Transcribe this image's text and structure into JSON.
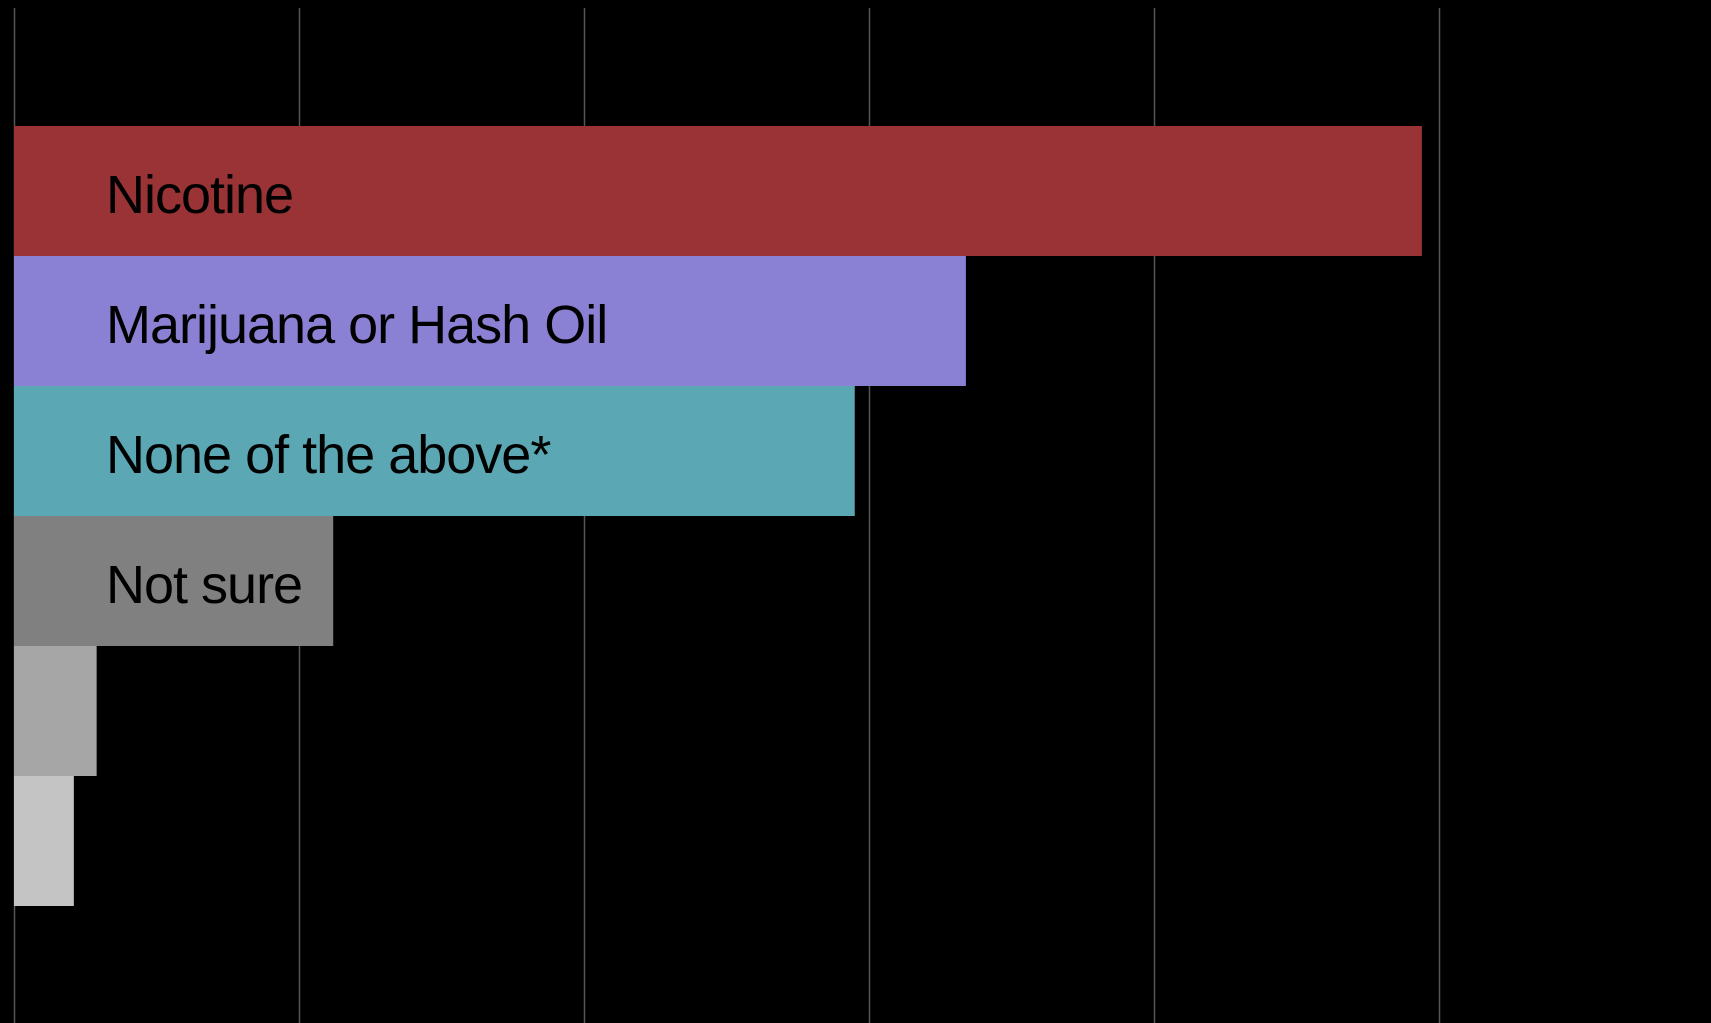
{
  "chart_data": {
    "type": "bar",
    "orientation": "horizontal",
    "title": "",
    "xlabel": "",
    "ylabel": "",
    "xlim": [
      0,
      60
    ],
    "x_gridlines": [
      0,
      10,
      20,
      30,
      40,
      50
    ],
    "grid": true,
    "legend": "none",
    "background": "#000000",
    "gridline_color": "#555555",
    "label_color": "#000000",
    "categories": [
      "Nicotine",
      "Marijuana or Hash Oil",
      "None of the above*",
      "Not sure",
      "",
      ""
    ],
    "values": [
      49.4,
      33.4,
      29.5,
      11.2,
      2.9,
      2.1
    ],
    "colors": [
      "#993336",
      "#8b81d4",
      "#5ba8b4",
      "#808080",
      "#a6a6a6",
      "#c4c4c4"
    ]
  }
}
